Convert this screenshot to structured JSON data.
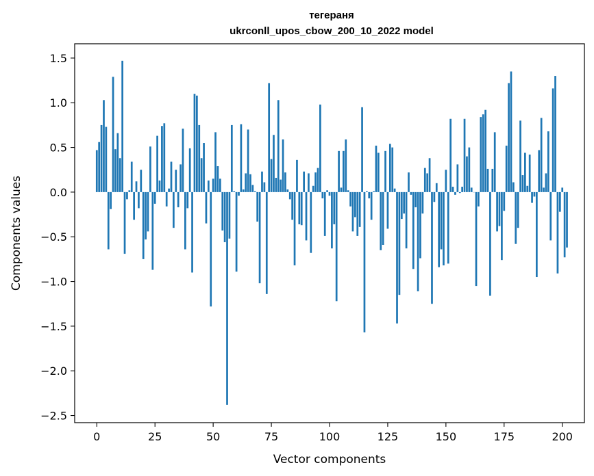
{
  "chart_data": {
    "type": "bar",
    "title": "тегераня",
    "subtitle": "ukrconll_upos_cbow_200_10_2022 model",
    "xlabel": "Vector components",
    "ylabel": "Components values",
    "xlim": [
      -9.5,
      209.5
    ],
    "ylim": [
      -2.58,
      1.66
    ],
    "x_ticks": [
      0,
      25,
      50,
      75,
      100,
      125,
      150,
      175,
      200
    ],
    "y_ticks": [
      -2.5,
      -2.0,
      -1.5,
      -1.0,
      -0.5,
      0.0,
      0.5,
      1.0,
      1.5
    ],
    "x_tick_labels": [
      "0",
      "25",
      "50",
      "75",
      "100",
      "125",
      "150",
      "175",
      "200"
    ],
    "y_tick_labels": [
      "−2.5",
      "−2.0",
      "−1.5",
      "−1.0",
      "−0.5",
      "0.0",
      "0.5",
      "1.0",
      "1.5"
    ],
    "bar_color": "#1f77b4",
    "grid": false,
    "legend": "none",
    "values": [
      0.47,
      0.56,
      0.75,
      1.03,
      0.73,
      -0.64,
      -0.19,
      1.29,
      0.48,
      0.66,
      0.38,
      1.47,
      -0.69,
      -0.08,
      0.02,
      0.34,
      -0.31,
      0.12,
      -0.18,
      0.25,
      -0.75,
      -0.53,
      -0.44,
      0.51,
      -0.87,
      -0.13,
      0.63,
      0.13,
      0.74,
      0.77,
      -0.16,
      0.04,
      0.34,
      -0.4,
      0.25,
      -0.17,
      0.31,
      0.71,
      -0.64,
      -0.18,
      0.49,
      -0.9,
      1.1,
      1.08,
      0.75,
      0.38,
      0.55,
      -0.35,
      0.13,
      -1.28,
      0.15,
      0.67,
      0.29,
      0.15,
      -0.43,
      -0.56,
      -2.38,
      -0.52,
      0.75,
      0.01,
      -0.89,
      -0.04,
      0.76,
      0.03,
      0.21,
      0.7,
      0.2,
      0.08,
      0.01,
      -0.33,
      -1.02,
      0.23,
      0.11,
      -1.14,
      1.22,
      0.37,
      0.64,
      0.16,
      1.03,
      0.14,
      0.59,
      0.22,
      0.03,
      -0.08,
      -0.31,
      -0.82,
      0.36,
      -0.36,
      -0.37,
      0.23,
      -0.54,
      0.21,
      -0.68,
      0.07,
      0.22,
      0.27,
      0.98,
      -0.07,
      -0.49,
      0.02,
      -0.04,
      -0.63,
      -0.36,
      -1.22,
      0.46,
      0.05,
      0.46,
      0.59,
      0.02,
      -0.16,
      -0.44,
      -0.28,
      -0.49,
      -0.39,
      0.95,
      -1.57,
      0.01,
      -0.07,
      -0.31,
      0.01,
      0.52,
      0.44,
      -0.65,
      -0.59,
      0.46,
      -0.41,
      0.54,
      0.5,
      0.04,
      -1.47,
      -1.15,
      -0.3,
      -0.24,
      -0.63,
      0.22,
      -0.03,
      -0.86,
      -0.17,
      -1.11,
      -0.74,
      -0.24,
      0.27,
      0.21,
      0.38,
      -1.25,
      -0.11,
      0.1,
      -0.84,
      -0.64,
      -0.82,
      0.25,
      -0.8,
      0.82,
      0.06,
      -0.03,
      0.31,
      -0.01,
      0.06,
      0.82,
      0.4,
      0.5,
      0.05,
      0.0,
      -1.05,
      -0.16,
      0.84,
      0.87,
      0.92,
      0.26,
      -1.16,
      0.26,
      0.67,
      -0.44,
      -0.38,
      -0.76,
      -0.21,
      0.52,
      1.22,
      1.35,
      0.11,
      -0.58,
      -0.4,
      0.8,
      0.19,
      0.44,
      0.07,
      0.42,
      -0.12,
      -0.05,
      -0.95,
      0.47,
      0.83,
      0.05,
      0.21,
      0.68,
      -0.54,
      1.16,
      1.3,
      -0.91,
      -0.22,
      0.05,
      -0.73,
      -0.62
    ]
  }
}
